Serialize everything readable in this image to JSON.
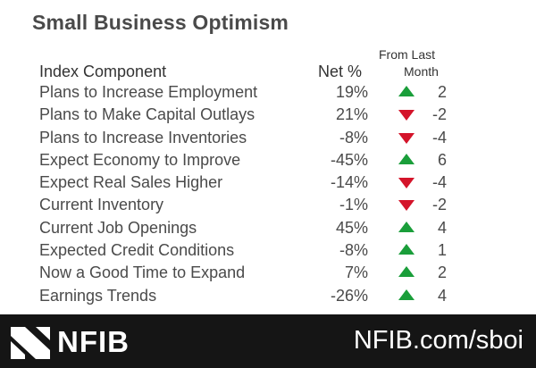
{
  "title": "Small Business Optimism",
  "header": {
    "component": "Index Component",
    "net": "Net %",
    "change_line1": "From Last",
    "change_line2": "Month"
  },
  "rows": [
    {
      "component": "Plans to Increase Employment",
      "net": "19%",
      "direction": "up",
      "change": "2"
    },
    {
      "component": "Plans to Make Capital Outlays",
      "net": "21%",
      "direction": "down",
      "change": "-2"
    },
    {
      "component": "Plans to Increase Inventories",
      "net": "-8%",
      "direction": "down",
      "change": "-4"
    },
    {
      "component": "Expect Economy to Improve",
      "net": "-45%",
      "direction": "up",
      "change": "6"
    },
    {
      "component": "Expect Real Sales Higher",
      "net": "-14%",
      "direction": "down",
      "change": "-4"
    },
    {
      "component": "Current Inventory",
      "net": "-1%",
      "direction": "down",
      "change": "-2"
    },
    {
      "component": "Current Job Openings",
      "net": "45%",
      "direction": "up",
      "change": "4"
    },
    {
      "component": "Expected Credit Conditions",
      "net": "-8%",
      "direction": "up",
      "change": "1"
    },
    {
      "component": "Now a Good Time to Expand",
      "net": "7%",
      "direction": "up",
      "change": "2"
    },
    {
      "component": "Earnings Trends",
      "net": "-26%",
      "direction": "up",
      "change": "4"
    }
  ],
  "colors": {
    "up": "#1a9e3a",
    "down": "#d4142a",
    "footer": "#151515"
  },
  "footer": {
    "brand": "NFIB",
    "url": "NFIB.com/sboi",
    "logo_icon": "nfib-logo-icon"
  }
}
